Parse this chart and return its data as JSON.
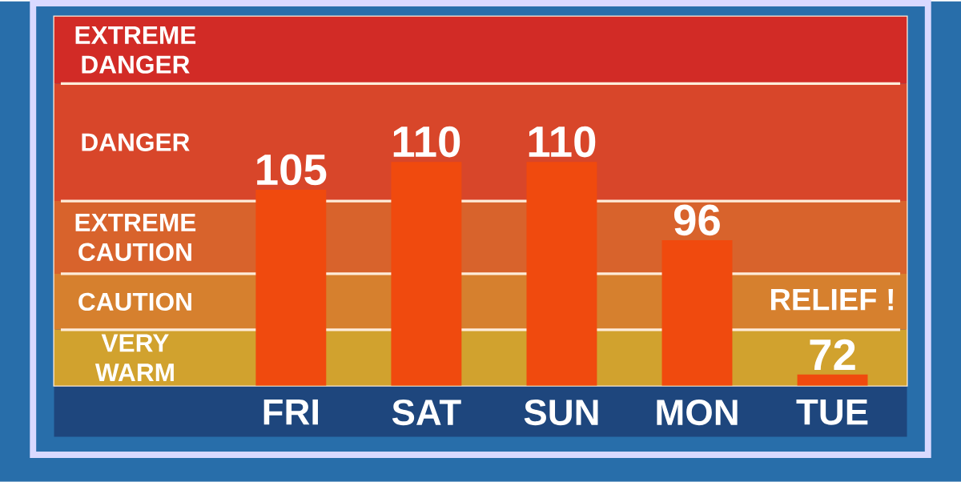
{
  "chart_data": {
    "type": "bar",
    "categories": [
      "FRI",
      "SAT",
      "SUN",
      "MON",
      "TUE"
    ],
    "values": [
      105,
      110,
      110,
      96,
      72
    ],
    "color": "#f04a0e",
    "data_labels": true,
    "ylim": [
      70,
      136
    ],
    "tick_labels": "x",
    "bands": [
      {
        "axis": "y",
        "from": 70,
        "to": 80,
        "label": "VERY WARM",
        "color": "#d1a22e"
      },
      {
        "axis": "y",
        "from": 80,
        "to": 90,
        "label": "CAUTION",
        "color": "#d6802e"
      },
      {
        "axis": "y",
        "from": 90,
        "to": 103,
        "label": "EXTREME CAUTION",
        "color": "#d8632c"
      },
      {
        "axis": "y",
        "from": 103,
        "to": 124,
        "label": "DANGER",
        "color": "#d8462a"
      },
      {
        "axis": "y",
        "from": 124,
        "to": 136,
        "label": "EXTREME DANGER",
        "color": "#d22b26"
      }
    ],
    "annotations": [
      "RELIEF !"
    ]
  }
}
